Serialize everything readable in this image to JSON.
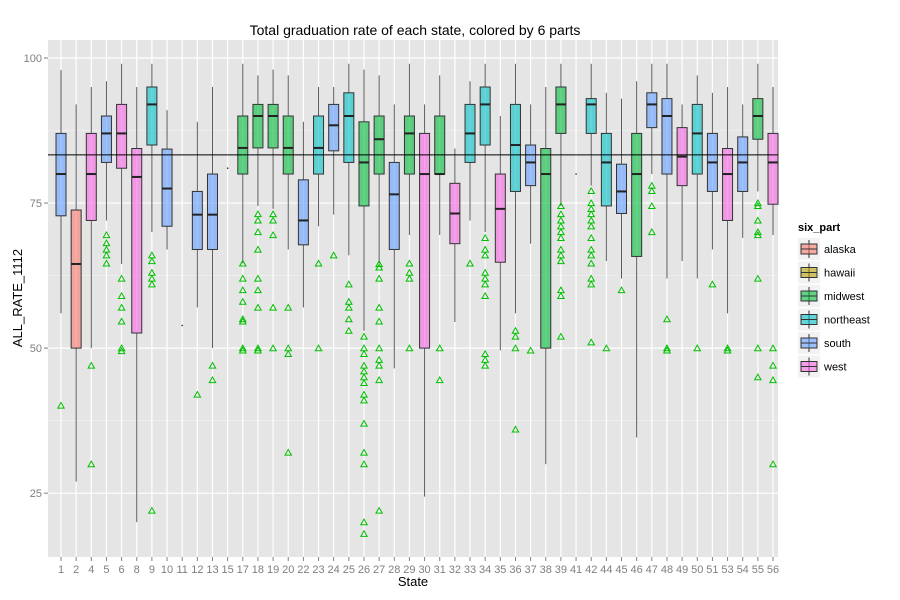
{
  "chart_data": {
    "type": "boxplot",
    "title": "Total graduation rate of each state, colored by 6 parts",
    "xlabel": "State",
    "ylabel": "ALL_RATE_1112",
    "ylim": [
      14,
      103.1
    ],
    "yticks": [
      25,
      50,
      75,
      100
    ],
    "grid": true,
    "reference_line": 83.3,
    "legend": {
      "title": "six_part",
      "placement": "right",
      "entries": [
        "alaska",
        "hawaii",
        "midwest",
        "northeast",
        "south",
        "west"
      ]
    },
    "colors": {
      "alaska": "#F8766D",
      "hawaii": "#B79F00",
      "midwest": "#00BA38",
      "northeast": "#00BFC4",
      "south": "#619CFF",
      "west": "#F564E3",
      "outlier": "#00C000"
    },
    "boxes": [
      {
        "state": "1",
        "group": "south",
        "min": 56,
        "q1": 72.8,
        "med": 80,
        "q3": 87,
        "max": 97.9,
        "outliers": [
          40.1
        ]
      },
      {
        "state": "2",
        "group": "alaska",
        "min": 27,
        "q1": 50,
        "med": 64.5,
        "q3": 73.8,
        "max": 92,
        "outliers": []
      },
      {
        "state": "4",
        "group": "west",
        "min": 50,
        "q1": 72,
        "med": 80,
        "q3": 87,
        "max": 95,
        "outliers": [
          47,
          30
        ]
      },
      {
        "state": "5",
        "group": "south",
        "min": 72,
        "q1": 82,
        "med": 87,
        "q3": 90,
        "max": 96,
        "outliers": [
          69.5,
          68.1,
          67,
          66,
          64.6
        ]
      },
      {
        "state": "6",
        "group": "west",
        "min": 64.5,
        "q1": 81,
        "med": 87,
        "q3": 92,
        "max": 99,
        "outliers": [
          62,
          59,
          57,
          54.6,
          50,
          49.5
        ]
      },
      {
        "state": "8",
        "group": "west",
        "min": 20,
        "q1": 52.6,
        "med": 79.5,
        "q3": 84.4,
        "max": 95,
        "outliers": []
      },
      {
        "state": "9",
        "group": "northeast",
        "min": 70,
        "q1": 85,
        "med": 92,
        "q3": 95,
        "max": 99,
        "outliers": [
          66,
          65,
          63,
          62,
          61,
          22
        ]
      },
      {
        "state": "10",
        "group": "south",
        "min": 67,
        "q1": 71,
        "med": 77.5,
        "q3": 84.3,
        "max": 91,
        "outliers": []
      },
      {
        "state": "11",
        "group": "south",
        "min": 53.9,
        "q1": 53.9,
        "med": 53.9,
        "q3": 53.9,
        "max": 53.9,
        "outliers": []
      },
      {
        "state": "12",
        "group": "south",
        "min": 57,
        "q1": 67,
        "med": 73,
        "q3": 77,
        "max": 89,
        "outliers": [
          42
        ]
      },
      {
        "state": "13",
        "group": "south",
        "min": 50,
        "q1": 67,
        "med": 73,
        "q3": 80,
        "max": 95,
        "outliers": [
          47,
          44.5
        ]
      },
      {
        "state": "15",
        "group": "hawaii",
        "min": 81,
        "q1": 81,
        "med": 81,
        "q3": 81,
        "max": 81,
        "outliers": []
      },
      {
        "state": "17",
        "group": "midwest",
        "min": 64.6,
        "q1": 80,
        "med": 84.5,
        "q3": 90,
        "max": 99,
        "outliers": [
          64.6,
          62,
          60,
          58,
          55,
          54.6,
          50,
          49.6
        ]
      },
      {
        "state": "18",
        "group": "midwest",
        "min": 74.5,
        "q1": 84.5,
        "med": 90,
        "q3": 92,
        "max": 97,
        "outliers": [
          73.1,
          72,
          70,
          67,
          62,
          60,
          57,
          50,
          49.6
        ]
      },
      {
        "state": "19",
        "group": "midwest",
        "min": 74,
        "q1": 84.5,
        "med": 90,
        "q3": 92,
        "max": 98,
        "outliers": [
          73.1,
          72,
          69.5,
          57,
          50
        ]
      },
      {
        "state": "20",
        "group": "midwest",
        "min": 67,
        "q1": 80,
        "med": 84.5,
        "q3": 90,
        "max": 97,
        "outliers": [
          57,
          50,
          49,
          32
        ]
      },
      {
        "state": "22",
        "group": "south",
        "min": 57,
        "q1": 67.8,
        "med": 72,
        "q3": 79,
        "max": 89,
        "outliers": []
      },
      {
        "state": "23",
        "group": "northeast",
        "min": 71,
        "q1": 80,
        "med": 84.5,
        "q3": 90,
        "max": 95,
        "outliers": [
          64.6,
          50
        ]
      },
      {
        "state": "24",
        "group": "south",
        "min": 73,
        "q1": 84,
        "med": 88.4,
        "q3": 92,
        "max": 95,
        "outliers": [
          66
        ]
      },
      {
        "state": "25",
        "group": "northeast",
        "min": 66,
        "q1": 82,
        "med": 90,
        "q3": 94,
        "max": 99,
        "outliers": [
          61,
          58,
          57,
          55,
          53
        ]
      },
      {
        "state": "26",
        "group": "midwest",
        "min": 53,
        "q1": 74.5,
        "med": 82,
        "q3": 89,
        "max": 98,
        "outliers": [
          52,
          50,
          49,
          47,
          46,
          45,
          44,
          42,
          41,
          37,
          32,
          30,
          20,
          18
        ]
      },
      {
        "state": "27",
        "group": "midwest",
        "min": 64.6,
        "q1": 80,
        "med": 86,
        "q3": 90,
        "max": 97,
        "outliers": [
          64.5,
          63.9,
          62,
          57,
          54.6,
          50,
          48,
          47,
          44.5,
          22
        ]
      },
      {
        "state": "28",
        "group": "south",
        "min": 46.5,
        "q1": 67,
        "med": 76.5,
        "q3": 82,
        "max": 92,
        "outliers": []
      },
      {
        "state": "29",
        "group": "midwest",
        "min": 69.5,
        "q1": 80,
        "med": 87,
        "q3": 90,
        "max": 99,
        "outliers": [
          64.6,
          63,
          62,
          50
        ]
      },
      {
        "state": "30",
        "group": "west",
        "min": 24.4,
        "q1": 50,
        "med": 80,
        "q3": 87,
        "max": 92,
        "outliers": []
      },
      {
        "state": "31",
        "group": "midwest",
        "min": 69.5,
        "q1": 80,
        "med": 80,
        "q3": 90,
        "max": 97,
        "outliers": [
          50,
          44.5
        ]
      },
      {
        "state": "32",
        "group": "west",
        "min": 54.5,
        "q1": 68,
        "med": 73.2,
        "q3": 78.4,
        "max": 84.4,
        "outliers": []
      },
      {
        "state": "33",
        "group": "northeast",
        "min": 72,
        "q1": 82,
        "med": 87,
        "q3": 92,
        "max": 96,
        "outliers": [
          64.6
        ]
      },
      {
        "state": "34",
        "group": "northeast",
        "min": 70,
        "q1": 85,
        "med": 92,
        "q3": 95,
        "max": 99,
        "outliers": [
          69,
          67,
          66,
          63,
          62,
          61,
          59,
          49,
          48,
          47
        ]
      },
      {
        "state": "35",
        "group": "west",
        "min": 49.6,
        "q1": 64.8,
        "med": 74,
        "q3": 80,
        "max": 90,
        "outliers": []
      },
      {
        "state": "36",
        "group": "northeast",
        "min": 56,
        "q1": 77,
        "med": 85,
        "q3": 92,
        "max": 99,
        "outliers": [
          53,
          52,
          50,
          36
        ]
      },
      {
        "state": "37",
        "group": "south",
        "min": 68,
        "q1": 78,
        "med": 82,
        "q3": 85,
        "max": 92,
        "outliers": [
          49.6
        ]
      },
      {
        "state": "38",
        "group": "midwest",
        "min": 30,
        "q1": 50,
        "med": 80,
        "q3": 84.4,
        "max": 95,
        "outliers": []
      },
      {
        "state": "39",
        "group": "midwest",
        "min": 74.5,
        "q1": 87,
        "med": 92,
        "q3": 95,
        "max": 99,
        "outliers": [
          74.5,
          73.1,
          72,
          71,
          70,
          69,
          67,
          66,
          65,
          60,
          59,
          52
        ]
      },
      {
        "state": "41",
        "group": "west",
        "min": 80,
        "q1": 80,
        "med": 80,
        "q3": 80,
        "max": 80,
        "outliers": []
      },
      {
        "state": "42",
        "group": "northeast",
        "min": 78,
        "q1": 87,
        "med": 92,
        "q3": 93,
        "max": 99,
        "outliers": [
          77.1,
          75,
          74,
          73.1,
          72,
          71,
          69,
          67,
          66,
          64.6,
          62,
          61,
          51
        ]
      },
      {
        "state": "44",
        "group": "northeast",
        "min": 65,
        "q1": 74.5,
        "med": 82,
        "q3": 87,
        "max": 94,
        "outliers": [
          50
        ]
      },
      {
        "state": "45",
        "group": "south",
        "min": 62,
        "q1": 73.2,
        "med": 77,
        "q3": 81.7,
        "max": 93,
        "outliers": [
          60
        ]
      },
      {
        "state": "46",
        "group": "midwest",
        "min": 34.6,
        "q1": 65.8,
        "med": 80,
        "q3": 87,
        "max": 96,
        "outliers": []
      },
      {
        "state": "47",
        "group": "south",
        "min": 80,
        "q1": 88,
        "med": 92,
        "q3": 94,
        "max": 99,
        "outliers": [
          78,
          77.1,
          74.5,
          70
        ]
      },
      {
        "state": "48",
        "group": "south",
        "min": 62,
        "q1": 80,
        "med": 90,
        "q3": 93,
        "max": 99,
        "outliers": [
          55,
          50,
          49.6
        ]
      },
      {
        "state": "49",
        "group": "west",
        "min": 65,
        "q1": 78,
        "med": 83,
        "q3": 88,
        "max": 92,
        "outliers": []
      },
      {
        "state": "50",
        "group": "northeast",
        "min": 62,
        "q1": 80,
        "med": 87,
        "q3": 92,
        "max": 97,
        "outliers": [
          50
        ]
      },
      {
        "state": "51",
        "group": "south",
        "min": 67,
        "q1": 77,
        "med": 82,
        "q3": 87,
        "max": 94,
        "outliers": [
          61
        ]
      },
      {
        "state": "53",
        "group": "west",
        "min": 56,
        "q1": 72,
        "med": 80,
        "q3": 84.4,
        "max": 95,
        "outliers": [
          50,
          49.6
        ]
      },
      {
        "state": "54",
        "group": "south",
        "min": 69,
        "q1": 77,
        "med": 82,
        "q3": 86.4,
        "max": 92,
        "outliers": []
      },
      {
        "state": "55",
        "group": "midwest",
        "min": 77,
        "q1": 86,
        "med": 90,
        "q3": 93,
        "max": 99,
        "outliers": [
          75,
          74.5,
          72,
          70,
          69.5,
          62,
          50,
          45
        ]
      },
      {
        "state": "56",
        "group": "west",
        "min": 69.5,
        "q1": 74.8,
        "med": 82,
        "q3": 87,
        "max": 95,
        "outliers": [
          50,
          47,
          44.5,
          30
        ]
      }
    ]
  }
}
